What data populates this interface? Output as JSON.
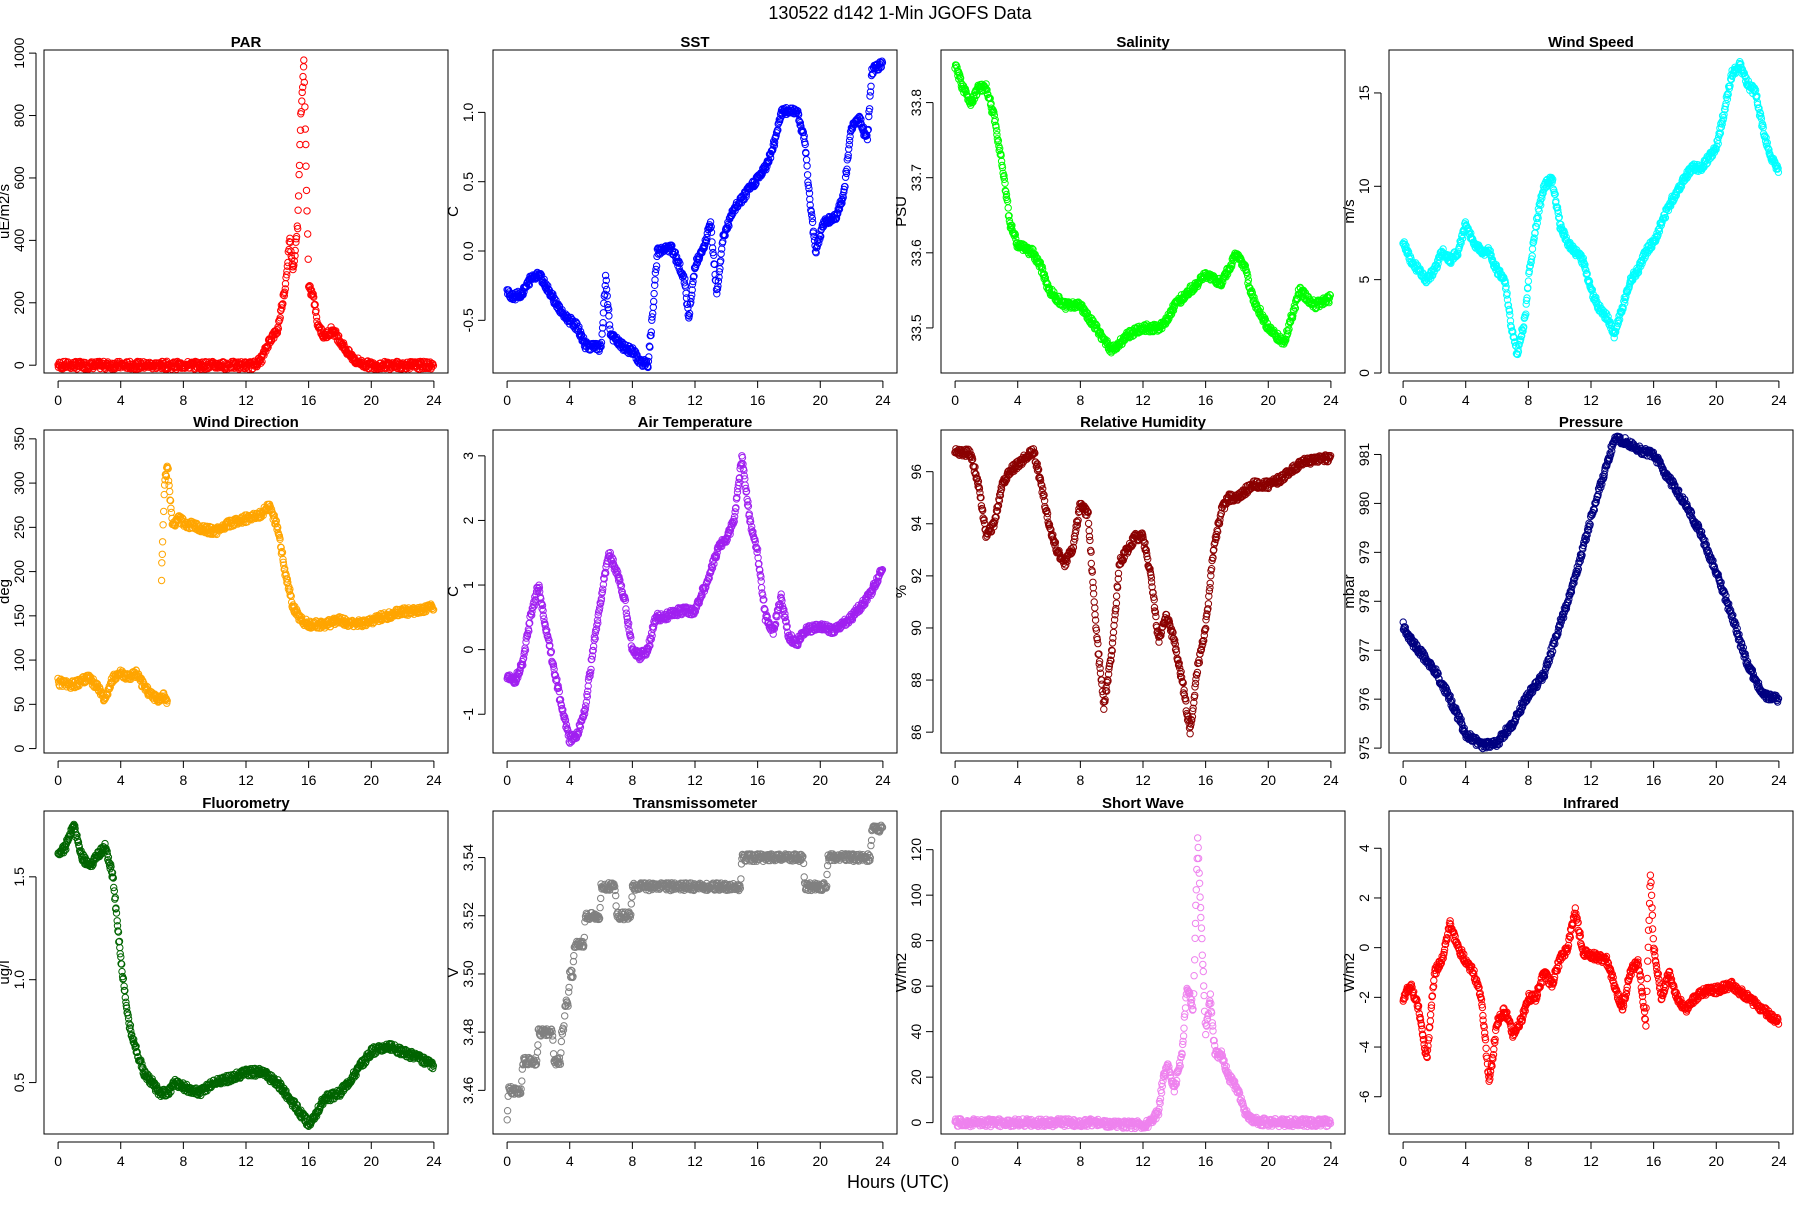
{
  "title": "130522   d142   1-Min  JGOFS Data",
  "xlabel": "Hours (UTC)",
  "chart_data": [
    {
      "type": "scatter",
      "title": "PAR",
      "ylabel": "uE/m2/s",
      "color": "#ff0000",
      "xlim": [
        -0.9,
        24.9
      ],
      "ylim": [
        -25,
        1010
      ],
      "xticks": [
        0,
        4,
        8,
        12,
        16,
        20,
        24
      ],
      "yticks": [
        0,
        200,
        400,
        600,
        800,
        1000
      ],
      "x": [
        0,
        12.5,
        13,
        13.5,
        14,
        14.5,
        14.8,
        15,
        15.3,
        15.5,
        15.7,
        15.9,
        16,
        16.3,
        16.6,
        17,
        17.5,
        18,
        18.5,
        19,
        19.5,
        20,
        24
      ],
      "y": [
        0,
        0,
        20,
        80,
        110,
        250,
        400,
        300,
        450,
        800,
        970,
        500,
        250,
        220,
        130,
        90,
        115,
        80,
        40,
        15,
        3,
        0,
        0
      ]
    },
    {
      "type": "scatter",
      "title": "SST",
      "ylabel": "C",
      "color": "#0000ff",
      "xlim": [
        -0.9,
        24.9
      ],
      "ylim": [
        -0.88,
        1.45
      ],
      "xticks": [
        0,
        4,
        8,
        12,
        16,
        20,
        24
      ],
      "yticks": [
        -0.5,
        0.0,
        0.5,
        1.0
      ],
      "x": [
        0,
        0.5,
        1,
        1.5,
        2,
        2.5,
        3,
        3.5,
        4,
        4.5,
        5,
        6,
        6.3,
        6.6,
        7,
        7.5,
        8,
        8.5,
        9,
        9.3,
        9.6,
        10.5,
        11,
        11.4,
        11.6,
        12,
        12.5,
        13,
        13.4,
        13.8,
        14.5,
        15.5,
        16.5,
        17,
        17.5,
        18.5,
        19,
        19.3,
        19.7,
        20.2,
        21,
        21.5,
        22,
        22.5,
        23,
        23.3,
        24
      ],
      "y": [
        -0.3,
        -0.33,
        -0.3,
        -0.2,
        -0.16,
        -0.25,
        -0.35,
        -0.45,
        -0.5,
        -0.55,
        -0.68,
        -0.7,
        -0.2,
        -0.6,
        -0.65,
        -0.7,
        -0.72,
        -0.8,
        -0.82,
        -0.45,
        0.0,
        0.02,
        -0.1,
        -0.25,
        -0.5,
        -0.1,
        0.0,
        0.2,
        -0.3,
        0.1,
        0.3,
        0.45,
        0.6,
        0.75,
        1.0,
        1.02,
        0.8,
        0.4,
        0.0,
        0.2,
        0.25,
        0.4,
        0.9,
        0.95,
        0.8,
        1.3,
        1.35
      ]
    },
    {
      "type": "scatter",
      "title": "Salinity",
      "ylabel": "PSU",
      "color": "#00ff00",
      "xlim": [
        -0.9,
        24.9
      ],
      "ylim": [
        33.44,
        33.87
      ],
      "xticks": [
        0,
        4,
        8,
        12,
        16,
        20,
        24
      ],
      "yticks": [
        33.5,
        33.6,
        33.7,
        33.8
      ],
      "x": [
        0,
        0.5,
        1,
        1.5,
        2,
        2.5,
        3,
        3.5,
        4,
        5,
        5.5,
        6,
        7,
        8,
        9,
        10,
        11,
        12,
        13,
        13.5,
        14,
        15,
        16,
        17,
        17.5,
        18,
        18.5,
        19,
        20,
        21,
        22,
        23,
        24
      ],
      "y": [
        33.85,
        33.82,
        33.8,
        33.82,
        33.82,
        33.78,
        33.72,
        33.64,
        33.61,
        33.6,
        33.58,
        33.55,
        33.53,
        33.53,
        33.5,
        33.47,
        33.49,
        33.5,
        33.5,
        33.51,
        33.53,
        33.55,
        33.57,
        33.56,
        33.58,
        33.6,
        33.58,
        33.54,
        33.5,
        33.48,
        33.55,
        33.53,
        33.54
      ]
    },
    {
      "type": "scatter",
      "title": "Wind Speed",
      "ylabel": "m/s",
      "color": "#00ffff",
      "xlim": [
        -0.9,
        24.9
      ],
      "ylim": [
        0,
        17.3
      ],
      "xticks": [
        0,
        4,
        8,
        12,
        16,
        20,
        24
      ],
      "yticks": [
        0,
        5,
        10,
        15
      ],
      "x": [
        0,
        0.5,
        1,
        1.5,
        2,
        2.5,
        3,
        3.5,
        4,
        4.5,
        5,
        5.5,
        6,
        6.5,
        7,
        7.3,
        7.8,
        8,
        8.5,
        9,
        9.5,
        10,
        10.5,
        11,
        11.5,
        12,
        12.5,
        13,
        13.5,
        14,
        14.5,
        15,
        15.5,
        16,
        17,
        18,
        18.5,
        19,
        20,
        20.5,
        21,
        21.5,
        22,
        22.5,
        23,
        23.5,
        24
      ],
      "y": [
        7,
        6,
        5.5,
        5,
        5.5,
        6.5,
        6,
        6.5,
        8,
        7,
        6.5,
        6.5,
        5.5,
        5,
        2,
        1,
        3,
        5,
        8,
        10,
        10.5,
        8,
        7,
        6.5,
        6,
        4.5,
        3.5,
        3,
        2,
        3.5,
        5,
        5.5,
        6.5,
        7,
        9,
        10.5,
        11,
        11,
        12,
        14,
        16,
        16.5,
        15.5,
        15,
        13,
        11.5,
        10.8
      ]
    },
    {
      "type": "scatter",
      "title": "Wind Direction",
      "ylabel": "deg",
      "color": "#ffa500",
      "xlim": [
        -0.9,
        24.9
      ],
      "ylim": [
        -5,
        360
      ],
      "xticks": [
        0,
        4,
        8,
        12,
        16,
        20,
        24
      ],
      "yticks": [
        0,
        50,
        100,
        150,
        200,
        250,
        300,
        350
      ],
      "x": [
        0,
        1,
        2,
        2.5,
        3,
        3.5,
        4,
        4.5,
        5,
        5.5,
        6,
        6.5,
        6.8,
        7,
        null,
        6.6,
        6.8,
        7,
        7.3,
        7.7,
        8,
        9,
        10,
        11,
        12,
        13,
        13.5,
        14,
        14.5,
        15,
        15.5,
        16,
        17,
        18,
        19,
        20,
        21,
        22,
        23,
        24
      ],
      "y": [
        75,
        72,
        80,
        70,
        55,
        80,
        85,
        80,
        85,
        70,
        60,
        55,
        60,
        50,
        null,
        190,
        300,
        320,
        250,
        260,
        255,
        250,
        245,
        255,
        260,
        265,
        275,
        250,
        200,
        160,
        145,
        140,
        140,
        145,
        140,
        145,
        150,
        155,
        155,
        160
      ]
    },
    {
      "type": "scatter",
      "title": "Air Temperature",
      "ylabel": "C",
      "color": "#a020f0",
      "xlim": [
        -0.9,
        24.9
      ],
      "ylim": [
        -1.6,
        3.4
      ],
      "xticks": [
        0,
        4,
        8,
        12,
        16,
        20,
        24
      ],
      "yticks": [
        -1,
        0,
        1,
        2,
        3
      ],
      "x": [
        0,
        0.5,
        1,
        1.5,
        2,
        2.5,
        3,
        3.5,
        4,
        4.5,
        5,
        5.5,
        6,
        6.5,
        7,
        7.5,
        8,
        8.5,
        9,
        9.5,
        10,
        11,
        12,
        13,
        13.5,
        14,
        14.5,
        15,
        15.5,
        16,
        16.5,
        17,
        17.5,
        18,
        18.5,
        19,
        20,
        21,
        22,
        23,
        23.5,
        24
      ],
      "y": [
        -0.4,
        -0.5,
        -0.2,
        0.5,
        1.0,
        0.3,
        -0.3,
        -0.9,
        -1.4,
        -1.3,
        -0.9,
        0.0,
        0.8,
        1.5,
        1.2,
        0.8,
        0.0,
        -0.1,
        0.0,
        0.5,
        0.5,
        0.6,
        0.6,
        1.2,
        1.6,
        1.7,
        2.0,
        3.0,
        2.0,
        1.5,
        0.5,
        0.3,
        0.8,
        0.2,
        0.1,
        0.3,
        0.35,
        0.3,
        0.5,
        0.8,
        1.0,
        1.3
      ]
    },
    {
      "type": "scatter",
      "title": "Relative Humidity",
      "ylabel": "%",
      "color": "#8b0000",
      "xlim": [
        -0.9,
        24.9
      ],
      "ylim": [
        85.2,
        97.6
      ],
      "xticks": [
        0,
        4,
        8,
        12,
        16,
        20,
        24
      ],
      "yticks": [
        86,
        88,
        90,
        92,
        94,
        96
      ],
      "x": [
        0,
        1,
        1.5,
        2,
        2.5,
        3,
        3.5,
        4,
        5,
        5.5,
        6,
        6.5,
        7,
        7.5,
        8,
        8.5,
        9,
        9.5,
        10,
        10.5,
        11,
        11.5,
        12,
        12.5,
        13,
        13.5,
        14,
        14.5,
        15,
        15.5,
        16,
        16.5,
        17,
        17.5,
        18,
        19,
        20,
        21,
        22,
        23,
        24
      ],
      "y": [
        96.8,
        96.7,
        95.5,
        93.5,
        94,
        95.5,
        96,
        96.3,
        96.8,
        95.5,
        94,
        93,
        92.5,
        93,
        94.8,
        94.3,
        90,
        87,
        89,
        92.5,
        93,
        93.5,
        93.5,
        92,
        89.5,
        90.5,
        89.5,
        88,
        86,
        88.5,
        90,
        93,
        94.5,
        95,
        95,
        95.5,
        95.5,
        95.8,
        96.3,
        96.5,
        96.5
      ]
    },
    {
      "type": "scatter",
      "title": "Pressure",
      "ylabel": "mbar",
      "color": "#000080",
      "xlim": [
        -0.9,
        24.9
      ],
      "ylim": [
        974.9,
        981.5
      ],
      "xticks": [
        0,
        4,
        8,
        12,
        16,
        20,
        24
      ],
      "yticks": [
        975,
        976,
        977,
        978,
        979,
        980,
        981
      ],
      "x": [
        0,
        0.5,
        1,
        2,
        3,
        4,
        5,
        6,
        7,
        8,
        9,
        10,
        11,
        12,
        13,
        13.5,
        14,
        15,
        16,
        17,
        18,
        19,
        20,
        21,
        22,
        23,
        24
      ],
      "y": [
        977.5,
        977.2,
        977,
        976.6,
        976,
        975.3,
        975.05,
        975.1,
        975.5,
        976.1,
        976.5,
        977.5,
        978.5,
        979.7,
        980.8,
        981.3,
        981.3,
        981.1,
        981,
        980.5,
        980,
        979.4,
        978.6,
        977.7,
        976.7,
        976.1,
        976
      ]
    },
    {
      "type": "scatter",
      "title": "Fluorometry",
      "ylabel": "ug/l",
      "color": "#006400",
      "xlim": [
        -0.9,
        24.9
      ],
      "ylim": [
        0.25,
        1.82
      ],
      "xticks": [
        0,
        4,
        8,
        12,
        16,
        20,
        24
      ],
      "yticks": [
        0.5,
        1.0,
        1.5
      ],
      "x": [
        0,
        0.5,
        1,
        1.5,
        2,
        2.5,
        3,
        3.5,
        4,
        4.5,
        5,
        5.5,
        6,
        6.5,
        7,
        7.5,
        8,
        9,
        10,
        11,
        12,
        13,
        14,
        15,
        15.5,
        16,
        16.5,
        17,
        18,
        19,
        20,
        21,
        22,
        23,
        24
      ],
      "y": [
        1.6,
        1.65,
        1.75,
        1.6,
        1.55,
        1.6,
        1.65,
        1.5,
        1.1,
        0.8,
        0.65,
        0.55,
        0.5,
        0.45,
        0.45,
        0.5,
        0.48,
        0.45,
        0.5,
        0.52,
        0.55,
        0.55,
        0.5,
        0.4,
        0.35,
        0.3,
        0.35,
        0.42,
        0.45,
        0.55,
        0.65,
        0.68,
        0.65,
        0.62,
        0.58
      ]
    },
    {
      "type": "scatter",
      "title": "Transmissometer",
      "ylabel": "V",
      "color": "#808080",
      "xlim": [
        -0.9,
        24.9
      ],
      "ylim": [
        3.445,
        3.556
      ],
      "xticks": [
        0,
        4,
        8,
        12,
        16,
        20,
        24
      ],
      "yticks": [
        3.46,
        3.48,
        3.5,
        3.52,
        3.54
      ],
      "x": [
        0,
        0.1,
        0.9,
        1,
        1.9,
        2,
        2.9,
        3,
        3.4,
        3.5,
        3.6,
        3.7,
        3.9,
        4,
        4.2,
        4.3,
        4.9,
        5,
        5.9,
        6,
        6.9,
        7,
        7.9,
        8,
        14.9,
        15,
        18.9,
        19,
        20.4,
        20.5,
        23.2,
        23.3,
        24
      ],
      "y": [
        3.45,
        3.46,
        3.46,
        3.47,
        3.47,
        3.48,
        3.48,
        3.47,
        3.47,
        3.48,
        3.48,
        3.49,
        3.49,
        3.5,
        3.5,
        3.51,
        3.51,
        3.52,
        3.52,
        3.53,
        3.53,
        3.52,
        3.52,
        3.53,
        3.53,
        3.54,
        3.54,
        3.53,
        3.53,
        3.54,
        3.54,
        3.55,
        3.55
      ]
    },
    {
      "type": "scatter",
      "title": "Short Wave",
      "ylabel": "W/m2",
      "color": "#ee82ee",
      "xlim": [
        -0.9,
        24.9
      ],
      "ylim": [
        -5,
        137
      ],
      "xticks": [
        0,
        4,
        8,
        12,
        16,
        20,
        24
      ],
      "yticks": [
        0,
        20,
        40,
        60,
        80,
        100,
        120
      ],
      "x": [
        0,
        9,
        10,
        12,
        12.5,
        13,
        13.3,
        13.6,
        14,
        14.5,
        14.8,
        15.2,
        15.5,
        15.7,
        16,
        16.3,
        16.6,
        17,
        17.5,
        18,
        18.5,
        19,
        20,
        24
      ],
      "y": [
        0,
        0,
        -1,
        -1,
        0,
        5,
        20,
        25,
        15,
        30,
        60,
        50,
        125,
        90,
        40,
        55,
        30,
        30,
        20,
        15,
        5,
        1,
        0,
        0
      ]
    },
    {
      "type": "scatter",
      "title": "Infrared",
      "ylabel": "W/m2",
      "color": "#ff0000",
      "xlim": [
        -0.9,
        24.9
      ],
      "ylim": [
        -7.5,
        5.5
      ],
      "xticks": [
        0,
        4,
        8,
        12,
        16,
        20,
        24
      ],
      "yticks": [
        -6,
        -4,
        -2,
        0,
        2,
        4
      ],
      "x": [
        0,
        0.5,
        1,
        1.5,
        2,
        2.5,
        3,
        3.5,
        4,
        4.5,
        5,
        5.5,
        6,
        6.5,
        7,
        7.5,
        8,
        8.5,
        9,
        9.5,
        10,
        10.5,
        11,
        11.5,
        12,
        13,
        13.5,
        14,
        14.5,
        15,
        15.5,
        15.8,
        16,
        16.5,
        17,
        17.5,
        18,
        19,
        20,
        21,
        22,
        23,
        24
      ],
      "y": [
        -2,
        -1.5,
        -2.5,
        -4.5,
        -1,
        -0.5,
        1,
        0,
        -0.5,
        -1,
        -2,
        -5.5,
        -3,
        -2.5,
        -3.5,
        -3,
        -2,
        -2,
        -1,
        -1.5,
        -0.5,
        0,
        1.5,
        -0.2,
        -0.3,
        -0.5,
        -1.5,
        -2.5,
        -1,
        -0.5,
        -3,
        3,
        0,
        -2,
        -1,
        -2,
        -2.5,
        -1.8,
        -1.7,
        -1.5,
        -2,
        -2.5,
        -3
      ]
    }
  ]
}
